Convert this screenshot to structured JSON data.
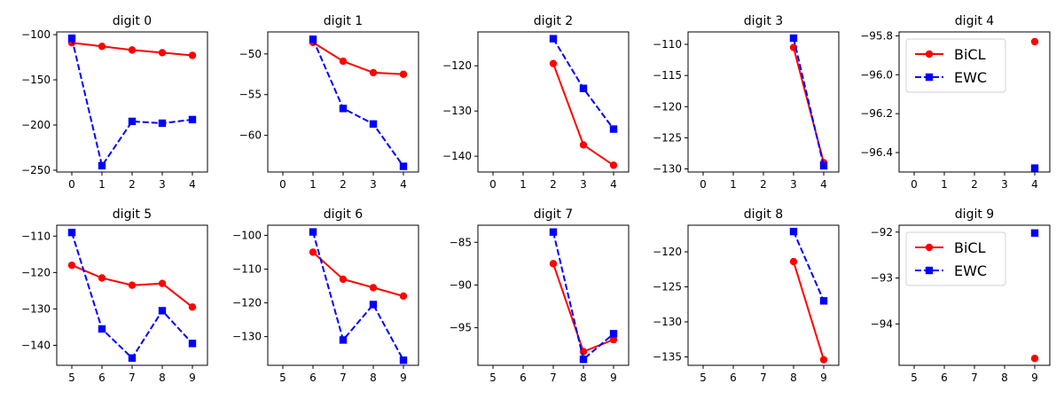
{
  "chart_data": {
    "type": "line",
    "layout": "2x5 grid",
    "series_styles": [
      {
        "name": "BiCL",
        "color": "#ff0000",
        "linestyle": "solid",
        "marker": "circle"
      },
      {
        "name": "EWC",
        "color": "#0000ff",
        "linestyle": "dashed",
        "marker": "square"
      }
    ],
    "panels": [
      {
        "title": "digit 0",
        "xticks": [
          0,
          1,
          2,
          3,
          4
        ],
        "xlim": [
          -0.5,
          4.5
        ],
        "ylim": [
          -252,
          -97
        ],
        "yticks": [
          -100,
          -150,
          -200,
          -250
        ],
        "ytick_labels": [
          "−100",
          "−150",
          "−200",
          "−250"
        ],
        "series": [
          {
            "name": "BiCL",
            "x": [
              0,
              1,
              2,
              3,
              4
            ],
            "values": [
              -109,
              -113,
              -117,
              -120,
              -123
            ]
          },
          {
            "name": "EWC",
            "x": [
              0,
              1,
              2,
              3,
              4
            ],
            "values": [
              -104,
              -245,
              -196,
              -198,
              -194
            ]
          }
        ]
      },
      {
        "title": "digit 1",
        "xticks": [
          0,
          1,
          2,
          3,
          4
        ],
        "xlim": [
          -0.5,
          4.5
        ],
        "ylim": [
          -64.5,
          -47.3
        ],
        "yticks": [
          -50,
          -55,
          -60
        ],
        "ytick_labels": [
          "−50",
          "−55",
          "−60"
        ],
        "series": [
          {
            "name": "BiCL",
            "x": [
              1,
              2,
              3,
              4
            ],
            "values": [
              -48.6,
              -50.9,
              -52.3,
              -52.5
            ]
          },
          {
            "name": "EWC",
            "x": [
              1,
              2,
              3,
              4
            ],
            "values": [
              -48.2,
              -56.7,
              -58.6,
              -63.8
            ]
          }
        ]
      },
      {
        "title": "digit 2",
        "xticks": [
          0,
          1,
          2,
          3,
          4
        ],
        "xlim": [
          -0.5,
          4.5
        ],
        "ylim": [
          -143.5,
          -112.5
        ],
        "yticks": [
          -120,
          -130,
          -140
        ],
        "ytick_labels": [
          "−120",
          "−130",
          "−140"
        ],
        "series": [
          {
            "name": "BiCL",
            "x": [
              2,
              3,
              4
            ],
            "values": [
              -119.5,
              -137.5,
              -142
            ]
          },
          {
            "name": "EWC",
            "x": [
              2,
              3,
              4
            ],
            "values": [
              -114,
              -125,
              -134
            ]
          }
        ]
      },
      {
        "title": "digit 3",
        "xticks": [
          0,
          1,
          2,
          3,
          4
        ],
        "xlim": [
          -0.5,
          4.5
        ],
        "ylim": [
          -130.5,
          -108
        ],
        "yticks": [
          -110,
          -115,
          -120,
          -125,
          -130
        ],
        "ytick_labels": [
          "−110",
          "−115",
          "−120",
          "−125",
          "−130"
        ],
        "series": [
          {
            "name": "BiCL",
            "x": [
              3,
              4
            ],
            "values": [
              -110.5,
              -129
            ]
          },
          {
            "name": "EWC",
            "x": [
              3,
              4
            ],
            "values": [
              -109,
              -129.5
            ]
          }
        ]
      },
      {
        "title": "digit 4",
        "xticks": [
          0,
          1,
          2,
          3,
          4
        ],
        "xlim": [
          -0.5,
          4.5
        ],
        "ylim": [
          -96.5,
          -95.78
        ],
        "yticks": [
          -95.8,
          -96.0,
          -96.2,
          -96.4
        ],
        "ytick_labels": [
          "−95.8",
          "−96.0",
          "−96.2",
          "−96.4"
        ],
        "legend": "upper-left",
        "series": [
          {
            "name": "BiCL",
            "x": [
              4
            ],
            "values": [
              -95.83
            ]
          },
          {
            "name": "EWC",
            "x": [
              4
            ],
            "values": [
              -96.48
            ]
          }
        ]
      },
      {
        "title": "digit 5",
        "xticks": [
          5,
          6,
          7,
          8,
          9
        ],
        "xlim": [
          4.5,
          9.5
        ],
        "ylim": [
          -145.5,
          -107
        ],
        "yticks": [
          -110,
          -120,
          -130,
          -140
        ],
        "ytick_labels": [
          "−110",
          "−120",
          "−130",
          "−140"
        ],
        "series": [
          {
            "name": "BiCL",
            "x": [
              5,
              6,
              7,
              8,
              9
            ],
            "values": [
              -118,
              -121.5,
              -123.5,
              -123,
              -129.5
            ]
          },
          {
            "name": "EWC",
            "x": [
              5,
              6,
              7,
              8,
              9
            ],
            "values": [
              -109,
              -135.5,
              -143.5,
              -130.5,
              -139.5
            ]
          }
        ]
      },
      {
        "title": "digit 6",
        "xticks": [
          5,
          6,
          7,
          8,
          9
        ],
        "xlim": [
          4.5,
          9.5
        ],
        "ylim": [
          -138.5,
          -97
        ],
        "yticks": [
          -100,
          -110,
          -120,
          -130
        ],
        "ytick_labels": [
          "−100",
          "−110",
          "−120",
          "−130"
        ],
        "series": [
          {
            "name": "BiCL",
            "x": [
              6,
              7,
              8,
              9
            ],
            "values": [
              -105,
              -113,
              -115.5,
              -118
            ]
          },
          {
            "name": "EWC",
            "x": [
              6,
              7,
              8,
              9
            ],
            "values": [
              -99,
              -131,
              -120.5,
              -137
            ]
          }
        ]
      },
      {
        "title": "digit 7",
        "xticks": [
          5,
          6,
          7,
          8,
          9
        ],
        "xlim": [
          4.5,
          9.5
        ],
        "ylim": [
          -99.4,
          -83
        ],
        "yticks": [
          -85,
          -90,
          -95
        ],
        "ytick_labels": [
          "−85",
          "−90",
          "−95"
        ],
        "series": [
          {
            "name": "BiCL",
            "x": [
              7,
              8,
              9
            ],
            "values": [
              -87.5,
              -97.8,
              -96.4
            ]
          },
          {
            "name": "EWC",
            "x": [
              7,
              8,
              9
            ],
            "values": [
              -83.8,
              -98.7,
              -95.7
            ]
          }
        ]
      },
      {
        "title": "digit 8",
        "xticks": [
          5,
          6,
          7,
          8,
          9
        ],
        "xlim": [
          4.5,
          9.5
        ],
        "ylim": [
          -136.2,
          -116.2
        ],
        "yticks": [
          -120,
          -125,
          -130,
          -135
        ],
        "ytick_labels": [
          "−120",
          "−125",
          "−130",
          "−135"
        ],
        "series": [
          {
            "name": "BiCL",
            "x": [
              8,
              9
            ],
            "values": [
              -121.4,
              -135.4
            ]
          },
          {
            "name": "EWC",
            "x": [
              8,
              9
            ],
            "values": [
              -117.1,
              -127
            ]
          }
        ]
      },
      {
        "title": "digit 9",
        "xticks": [
          5,
          6,
          7,
          8,
          9
        ],
        "xlim": [
          4.5,
          9.5
        ],
        "ylim": [
          -94.9,
          -91.85
        ],
        "yticks": [
          -92,
          -93,
          -94
        ],
        "ytick_labels": [
          "−92",
          "−93",
          "−94"
        ],
        "legend": "upper-left",
        "series": [
          {
            "name": "BiCL",
            "x": [
              9
            ],
            "values": [
              -94.75
            ]
          },
          {
            "name": "EWC",
            "x": [
              9
            ],
            "values": [
              -92.02
            ]
          }
        ]
      }
    ]
  }
}
